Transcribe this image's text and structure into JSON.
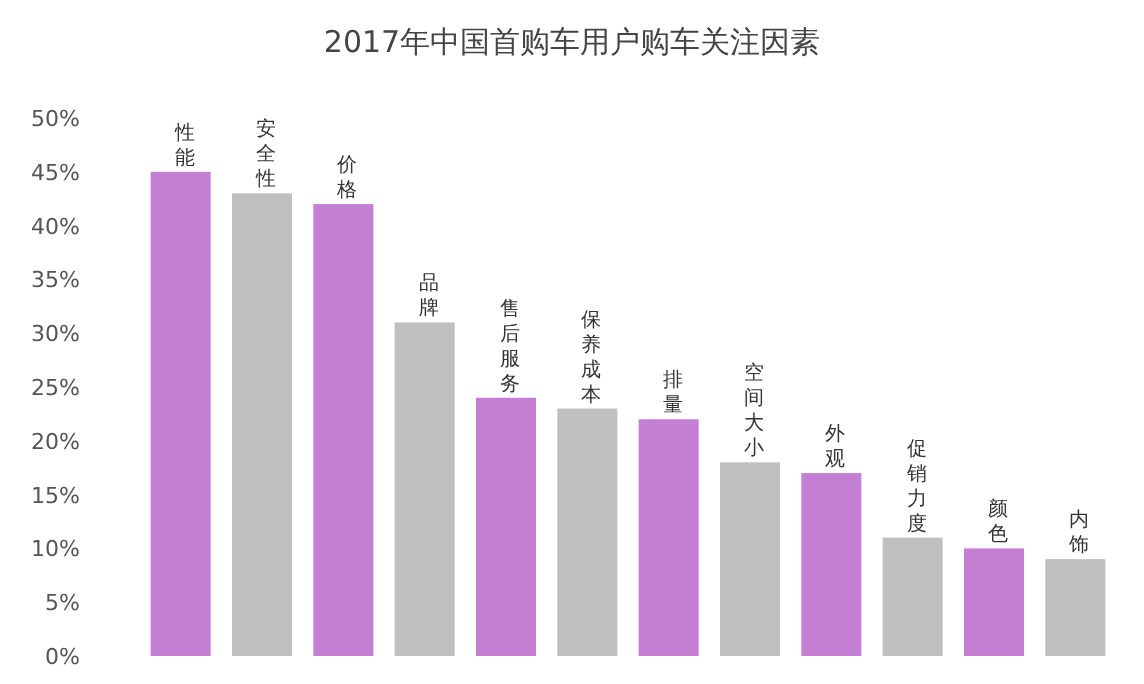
{
  "chart_data": {
    "type": "bar",
    "title": "2017年中国首购车用户购车关注因素",
    "categories": [
      "性能",
      "安全性",
      "价格",
      "品牌",
      "售后服务",
      "保养成本",
      "排量",
      "空间大小",
      "外观",
      "促销力度",
      "颜色",
      "内饰"
    ],
    "values": [
      45,
      43,
      42,
      31,
      24,
      23,
      22,
      18,
      17,
      11,
      10,
      9
    ],
    "colors": [
      "#c47fd5",
      "#bfbfbf",
      "#c47fd5",
      "#bfbfbf",
      "#c47fd5",
      "#bfbfbf",
      "#c47fd5",
      "#bfbfbf",
      "#c47fd5",
      "#bfbfbf",
      "#c47fd5",
      "#bfbfbf"
    ],
    "ylim": [
      0,
      50
    ],
    "yticks": [
      {
        "value": 0,
        "label": "0%"
      },
      {
        "value": 5,
        "label": "5%"
      },
      {
        "value": 10,
        "label": "10%"
      },
      {
        "value": 15,
        "label": "15%"
      },
      {
        "value": 20,
        "label": "20%"
      },
      {
        "value": 25,
        "label": "25%"
      },
      {
        "value": 30,
        "label": "30%"
      },
      {
        "value": 35,
        "label": "35%"
      },
      {
        "value": 40,
        "label": "40%"
      },
      {
        "value": 45,
        "label": "45%"
      },
      {
        "value": 50,
        "label": "50%"
      }
    ],
    "grid": false
  }
}
